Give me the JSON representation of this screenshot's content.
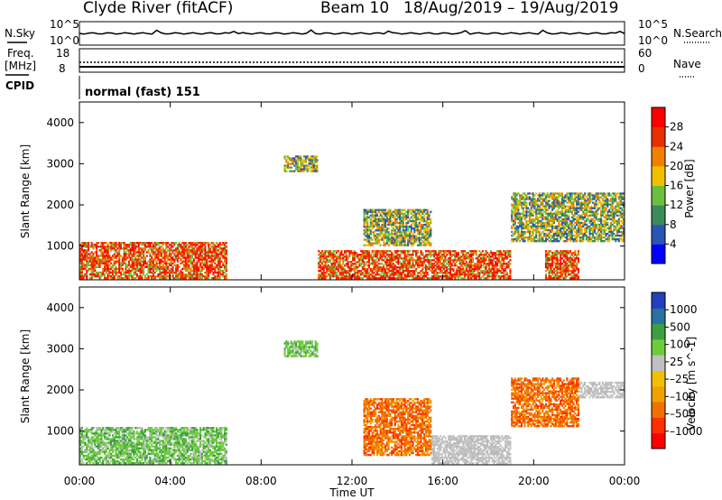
{
  "header": {
    "station": "Clyde River (fitACF)",
    "beam_label": "Beam 10",
    "date_range": "18/Aug/2019 – 19/Aug/2019"
  },
  "top_panels": {
    "nsky_label": "N.Sky",
    "nsearch_label": "N.Search",
    "noise_ticks_left": [
      "10^5",
      "10^0"
    ],
    "noise_ticks_right": [
      "10^5",
      "10^0"
    ],
    "freq_label_1": "Freq.",
    "freq_label_2": "[MHz]",
    "freq_ticks": [
      "18",
      "8"
    ],
    "nave_label": "Nave",
    "nave_ticks": [
      "60",
      "0"
    ],
    "cpid_label": "CPID",
    "cpid_value": "normal (fast) 151"
  },
  "chart_data": [
    {
      "type": "heatmap",
      "name": "power",
      "ylabel": "Slant Range [km]",
      "yticks": [
        "4000",
        "3000",
        "2000",
        "1000"
      ],
      "ylim": [
        180,
        4500
      ],
      "xlim": [
        "00:00",
        "24:00"
      ],
      "colorbar_label": "Power [dB]",
      "colorbar_ticks": [
        "28",
        "24",
        "20",
        "16",
        "12",
        "8",
        "4"
      ],
      "colorbar_colors": [
        "#0000ff",
        "#2a55b5",
        "#3a8a5a",
        "#6dbe3c",
        "#f0c000",
        "#f08000",
        "#e83000",
        "#ff0000"
      ],
      "regions": [
        {
          "t0": 0.0,
          "t1": 6.5,
          "r0": 200,
          "r1": 1100,
          "level": "high"
        },
        {
          "t0": 9.0,
          "t1": 10.5,
          "r0": 2800,
          "r1": 3200,
          "level": "medium"
        },
        {
          "t0": 12.5,
          "t1": 15.5,
          "r0": 1000,
          "r1": 1900,
          "level": "medium"
        },
        {
          "t0": 10.5,
          "t1": 19.0,
          "r0": 200,
          "r1": 900,
          "level": "high"
        },
        {
          "t0": 19.0,
          "t1": 24.0,
          "r0": 1100,
          "r1": 2300,
          "level": "medium"
        },
        {
          "t0": 20.5,
          "t1": 22.0,
          "r0": 200,
          "r1": 900,
          "level": "high"
        }
      ]
    },
    {
      "type": "heatmap",
      "name": "velocity",
      "ylabel": "Slant Range [km]",
      "yticks": [
        "4000",
        "3000",
        "2000",
        "1000"
      ],
      "ylim": [
        180,
        4500
      ],
      "xlim": [
        "00:00",
        "24:00"
      ],
      "colorbar_label": "Velocity [m s^-1]",
      "colorbar_ticks": [
        "1000",
        "500",
        "100",
        "25",
        "–25",
        "–100",
        "–500",
        "–1000"
      ],
      "colorbar_colors": [
        "#ff0000",
        "#ff3000",
        "#f07000",
        "#f0a000",
        "#f0c000",
        "#c0c0c0",
        "#6dcc3c",
        "#3aa040",
        "#2a70a0",
        "#2040c0"
      ],
      "regions": [
        {
          "t0": 0.0,
          "t1": 6.5,
          "r0": 200,
          "r1": 1100,
          "level": "low_positive"
        },
        {
          "t0": 9.0,
          "t1": 10.5,
          "r0": 2800,
          "r1": 3200,
          "level": "low_positive"
        },
        {
          "t0": 12.5,
          "t1": 15.5,
          "r0": 400,
          "r1": 1800,
          "level": "negative"
        },
        {
          "t0": 15.5,
          "t1": 19.0,
          "r0": 200,
          "r1": 900,
          "level": "ground"
        },
        {
          "t0": 19.0,
          "t1": 22.0,
          "r0": 1100,
          "r1": 2300,
          "level": "negative"
        },
        {
          "t0": 22.0,
          "t1": 24.0,
          "r0": 1800,
          "r1": 2200,
          "level": "ground"
        }
      ]
    }
  ],
  "x_axis": {
    "ticks": [
      "00:00",
      "04:00",
      "08:00",
      "12:00",
      "16:00",
      "20:00",
      "00:00"
    ],
    "label": "Time UT"
  }
}
